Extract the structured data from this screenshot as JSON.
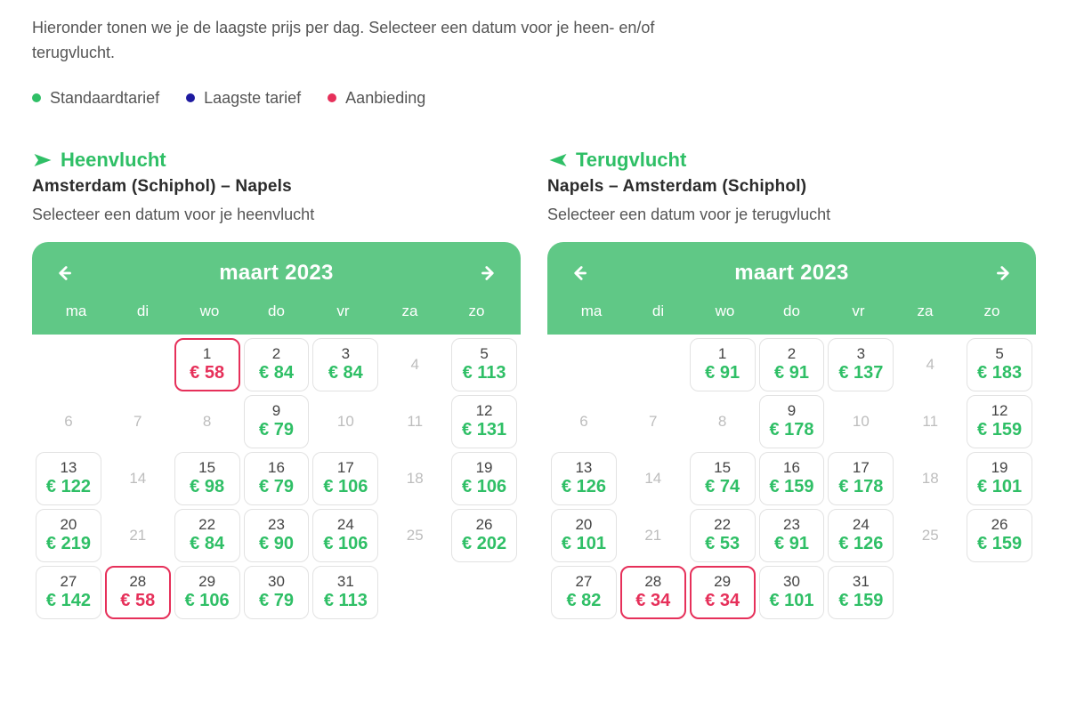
{
  "intro": "Hieronder tonen we je de laagste prijs per dag. Selecteer een datum voor je heen- en/of terugvlucht.",
  "legend": {
    "standard": {
      "label": "Standaardtarief",
      "color": "#2fbf66"
    },
    "lowest": {
      "label": "Laagste tarief",
      "color": "#1e1aa0"
    },
    "offer": {
      "label": "Aanbieding",
      "color": "#e6305a"
    }
  },
  "colors": {
    "primary_green": "#2fbf66",
    "header_green": "#60c886",
    "offer_pink": "#e6305a",
    "muted": "#bdbdbd"
  },
  "weekdays": [
    "ma",
    "di",
    "wo",
    "do",
    "vr",
    "za",
    "zo"
  ],
  "currency_symbol": "€",
  "panels": [
    {
      "icon": "depart",
      "title": "Heenvlucht",
      "route": "Amsterdam (Schiphol) – Napels",
      "instruction": "Selecteer een datum voor je heenvlucht",
      "month_label": "maart 2023",
      "lead_blanks": 2,
      "days": [
        {
          "d": 1,
          "price": 58,
          "type": "offer"
        },
        {
          "d": 2,
          "price": 84,
          "type": "standard"
        },
        {
          "d": 3,
          "price": 84,
          "type": "standard"
        },
        {
          "d": 4,
          "type": "na"
        },
        {
          "d": 5,
          "price": 113,
          "type": "standard"
        },
        {
          "d": 6,
          "type": "na"
        },
        {
          "d": 7,
          "type": "na"
        },
        {
          "d": 8,
          "type": "na"
        },
        {
          "d": 9,
          "price": 79,
          "type": "standard"
        },
        {
          "d": 10,
          "type": "na"
        },
        {
          "d": 11,
          "type": "na"
        },
        {
          "d": 12,
          "price": 131,
          "type": "standard"
        },
        {
          "d": 13,
          "price": 122,
          "type": "standard"
        },
        {
          "d": 14,
          "type": "na"
        },
        {
          "d": 15,
          "price": 98,
          "type": "standard"
        },
        {
          "d": 16,
          "price": 79,
          "type": "standard"
        },
        {
          "d": 17,
          "price": 106,
          "type": "standard"
        },
        {
          "d": 18,
          "type": "na"
        },
        {
          "d": 19,
          "price": 106,
          "type": "standard"
        },
        {
          "d": 20,
          "price": 219,
          "type": "standard"
        },
        {
          "d": 21,
          "type": "na"
        },
        {
          "d": 22,
          "price": 84,
          "type": "standard"
        },
        {
          "d": 23,
          "price": 90,
          "type": "standard"
        },
        {
          "d": 24,
          "price": 106,
          "type": "standard"
        },
        {
          "d": 25,
          "type": "na"
        },
        {
          "d": 26,
          "price": 202,
          "type": "standard"
        },
        {
          "d": 27,
          "price": 142,
          "type": "standard"
        },
        {
          "d": 28,
          "price": 58,
          "type": "offer"
        },
        {
          "d": 29,
          "price": 106,
          "type": "standard"
        },
        {
          "d": 30,
          "price": 79,
          "type": "standard"
        },
        {
          "d": 31,
          "price": 113,
          "type": "standard"
        }
      ]
    },
    {
      "icon": "return",
      "title": "Terugvlucht",
      "route": "Napels – Amsterdam (Schiphol)",
      "instruction": "Selecteer een datum voor je terugvlucht",
      "month_label": "maart 2023",
      "lead_blanks": 2,
      "days": [
        {
          "d": 1,
          "price": 91,
          "type": "standard"
        },
        {
          "d": 2,
          "price": 91,
          "type": "standard"
        },
        {
          "d": 3,
          "price": 137,
          "type": "standard"
        },
        {
          "d": 4,
          "type": "na"
        },
        {
          "d": 5,
          "price": 183,
          "type": "standard"
        },
        {
          "d": 6,
          "type": "na"
        },
        {
          "d": 7,
          "type": "na"
        },
        {
          "d": 8,
          "type": "na"
        },
        {
          "d": 9,
          "price": 178,
          "type": "standard"
        },
        {
          "d": 10,
          "type": "na"
        },
        {
          "d": 11,
          "type": "na"
        },
        {
          "d": 12,
          "price": 159,
          "type": "standard"
        },
        {
          "d": 13,
          "price": 126,
          "type": "standard"
        },
        {
          "d": 14,
          "type": "na"
        },
        {
          "d": 15,
          "price": 74,
          "type": "standard"
        },
        {
          "d": 16,
          "price": 159,
          "type": "standard"
        },
        {
          "d": 17,
          "price": 178,
          "type": "standard"
        },
        {
          "d": 18,
          "type": "na"
        },
        {
          "d": 19,
          "price": 101,
          "type": "standard"
        },
        {
          "d": 20,
          "price": 101,
          "type": "standard"
        },
        {
          "d": 21,
          "type": "na"
        },
        {
          "d": 22,
          "price": 53,
          "type": "standard"
        },
        {
          "d": 23,
          "price": 91,
          "type": "standard"
        },
        {
          "d": 24,
          "price": 126,
          "type": "standard"
        },
        {
          "d": 25,
          "type": "na"
        },
        {
          "d": 26,
          "price": 159,
          "type": "standard"
        },
        {
          "d": 27,
          "price": 82,
          "type": "standard"
        },
        {
          "d": 28,
          "price": 34,
          "type": "offer"
        },
        {
          "d": 29,
          "price": 34,
          "type": "offer"
        },
        {
          "d": 30,
          "price": 101,
          "type": "standard"
        },
        {
          "d": 31,
          "price": 159,
          "type": "standard"
        }
      ]
    }
  ]
}
